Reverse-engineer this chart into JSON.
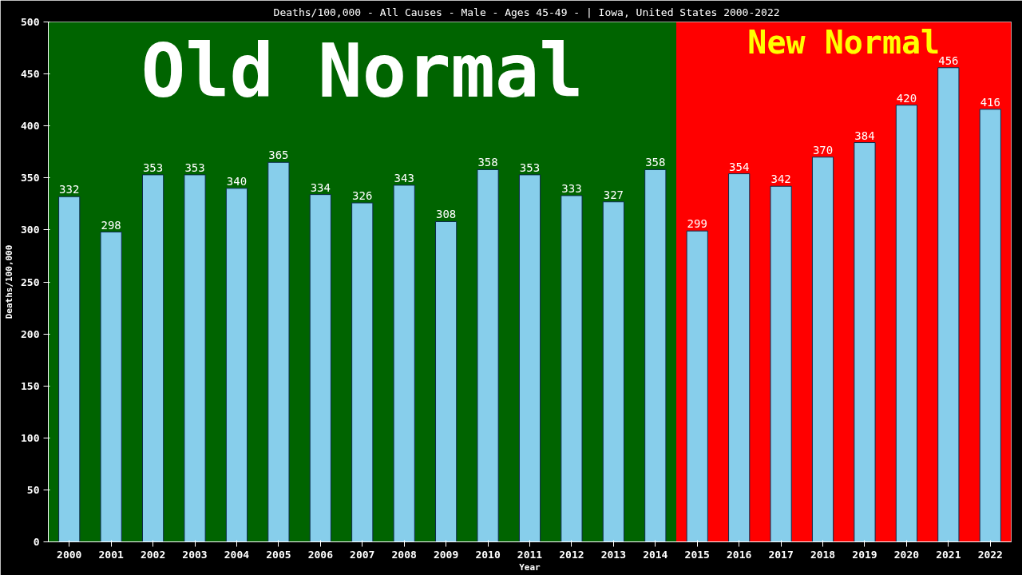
{
  "chart_data": {
    "type": "bar",
    "title": "Deaths/100,000 - All Causes - Male - Ages 45-49 -  | Iowa, United States 2000-2022",
    "xlabel": "Year",
    "ylabel": "Deaths/100,000",
    "categories": [
      "2000",
      "2001",
      "2002",
      "2003",
      "2004",
      "2005",
      "2006",
      "2007",
      "2008",
      "2009",
      "2010",
      "2011",
      "2012",
      "2013",
      "2014",
      "2015",
      "2016",
      "2017",
      "2018",
      "2019",
      "2020",
      "2021",
      "2022"
    ],
    "values": [
      332,
      298,
      353,
      353,
      340,
      365,
      334,
      326,
      343,
      308,
      358,
      353,
      333,
      327,
      358,
      299,
      354,
      342,
      370,
      384,
      420,
      456,
      416
    ],
    "color": "#87ceeb",
    "data_labels": true,
    "ylim": [
      0,
      500
    ],
    "yticks": [
      0,
      50,
      100,
      150,
      200,
      250,
      300,
      350,
      400,
      450,
      500
    ],
    "bands": [
      {
        "axis": "x",
        "from": "2000",
        "to": "2014",
        "label": "Old Normal",
        "color": "#006400"
      },
      {
        "axis": "x",
        "from": "2015",
        "to": "2022",
        "label": "New Normal",
        "color": "#ff0000"
      }
    ]
  }
}
